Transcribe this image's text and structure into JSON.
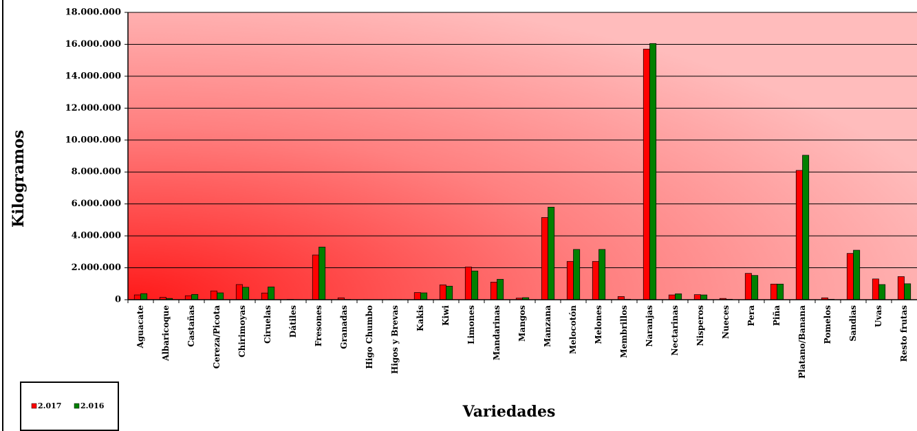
{
  "chart_data": {
    "type": "bar",
    "y_label": "Kilogramos",
    "x_label": "Variedades",
    "categories": [
      "Aguacate",
      "Albaricoque",
      "Castañas",
      "Cereza/Picota",
      "Chirimoyas",
      "Ciruelas",
      "Dátiles",
      "Fresones",
      "Granadas",
      "Higo Chumbo",
      "Higos y Brevas",
      "Kakis",
      "Kiwi",
      "Limones",
      "Mandarinas",
      "Mangos",
      "Manzana",
      "Melocotón",
      "Melones",
      "Membrillos",
      "Naranjas",
      "Nectarinas",
      "Nisperos",
      "Nueces",
      "Pera",
      "Piña",
      "Platano/Banana",
      "Pomelos",
      "Sandias",
      "Uvas",
      "Resto frutas"
    ],
    "series": [
      {
        "name": "2.017",
        "color": "#ff0000",
        "values": [
          300000,
          150000,
          250000,
          550000,
          950000,
          420000,
          20000,
          2800000,
          120000,
          10000,
          10000,
          450000,
          930000,
          2050000,
          1100000,
          100000,
          5150000,
          2400000,
          2400000,
          200000,
          15700000,
          300000,
          320000,
          80000,
          1650000,
          980000,
          8100000,
          120000,
          2900000,
          1300000,
          1450000
        ]
      },
      {
        "name": "2.016",
        "color": "#008000",
        "values": [
          380000,
          80000,
          330000,
          430000,
          780000,
          800000,
          10000,
          3300000,
          20000,
          0,
          10000,
          430000,
          850000,
          1800000,
          1280000,
          130000,
          5800000,
          3150000,
          3150000,
          30000,
          16050000,
          370000,
          300000,
          30000,
          1520000,
          980000,
          9050000,
          30000,
          3100000,
          950000,
          1000000
        ]
      }
    ],
    "ylim": [
      0,
      18000000
    ],
    "yticks": [
      0,
      {
        "value": 2000000,
        "label": "2.000.000"
      },
      {
        "value": 4000000,
        "label": "4.000.000"
      },
      {
        "value": 6000000,
        "label": "6.000.000"
      },
      {
        "value": 8000000,
        "label": "8.000.000"
      },
      {
        "value": 10000000,
        "label": "10.000.000"
      },
      {
        "value": 12000000,
        "label": "12.000.000"
      },
      {
        "value": 14000000,
        "label": "14.000.000"
      },
      {
        "value": 16000000,
        "label": "16.000.000"
      },
      {
        "value": 18000000,
        "label": "18.000.000"
      }
    ],
    "grid": true
  }
}
